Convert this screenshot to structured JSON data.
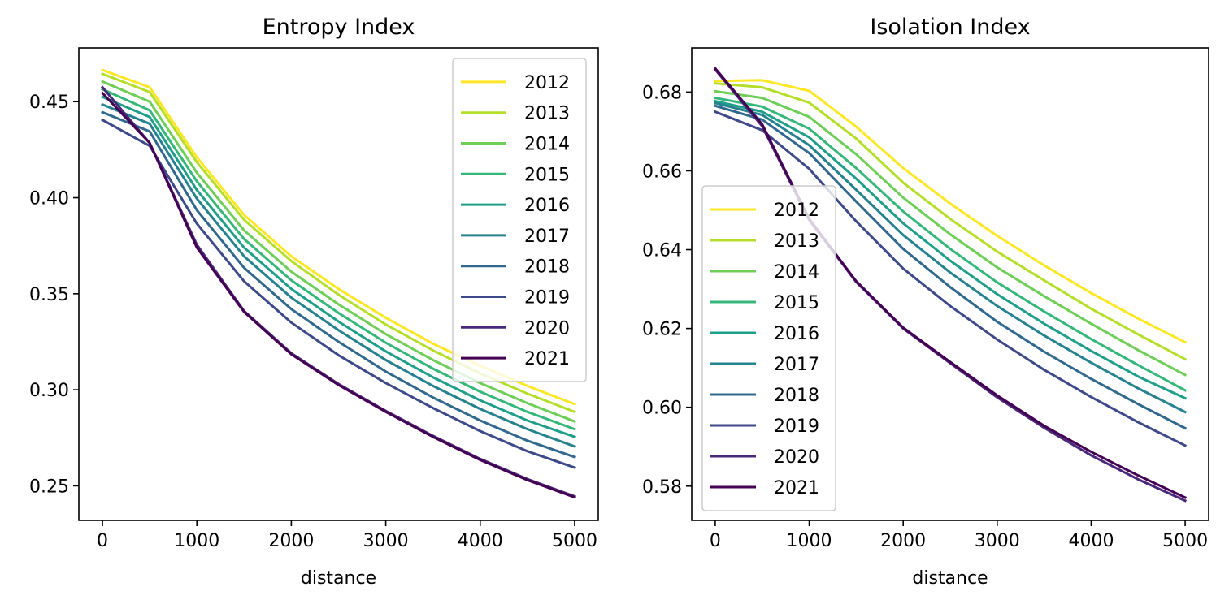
{
  "chart_data": [
    {
      "type": "line",
      "title": "Entropy Index",
      "xlabel": "distance",
      "ylabel": "",
      "xlim": [
        -250,
        5250
      ],
      "ylim": [
        0.232,
        0.478
      ],
      "xticks": [
        0,
        1000,
        2000,
        3000,
        4000,
        5000
      ],
      "xtick_labels": [
        "0",
        "1000",
        "2000",
        "3000",
        "4000",
        "5000"
      ],
      "yticks": [
        0.25,
        0.3,
        0.35,
        0.4,
        0.45
      ],
      "ytick_labels": [
        "0.25",
        "0.30",
        "0.35",
        "0.40",
        "0.45"
      ],
      "grid": false,
      "legend_position": "upper right",
      "x": [
        0,
        500,
        1000,
        1500,
        2000,
        2500,
        3000,
        3500,
        4000,
        4500,
        5000
      ],
      "series": [
        {
          "name": "2012",
          "color": "#fde725",
          "values": [
            0.4665,
            0.4575,
            0.421,
            0.391,
            0.3695,
            0.3525,
            0.3375,
            0.324,
            0.3125,
            0.302,
            0.2925
          ]
        },
        {
          "name": "2013",
          "color": "#b5de2b",
          "values": [
            0.4645,
            0.455,
            0.4185,
            0.3885,
            0.367,
            0.3495,
            0.334,
            0.3205,
            0.3085,
            0.298,
            0.2885
          ]
        },
        {
          "name": "2014",
          "color": "#6ece58",
          "values": [
            0.4605,
            0.45,
            0.413,
            0.383,
            0.3615,
            0.3445,
            0.329,
            0.3155,
            0.3035,
            0.293,
            0.2835
          ]
        },
        {
          "name": "2015",
          "color": "#35b779",
          "values": [
            0.4565,
            0.4455,
            0.4085,
            0.3785,
            0.357,
            0.34,
            0.3245,
            0.311,
            0.299,
            0.2885,
            0.2795
          ]
        },
        {
          "name": "2016",
          "color": "#1f9e89",
          "values": [
            0.4525,
            0.442,
            0.404,
            0.374,
            0.3525,
            0.3355,
            0.32,
            0.3065,
            0.2945,
            0.284,
            0.2755
          ]
        },
        {
          "name": "2017",
          "color": "#26828e",
          "values": [
            0.4485,
            0.4385,
            0.3995,
            0.3695,
            0.348,
            0.331,
            0.3155,
            0.302,
            0.29,
            0.2795,
            0.2705
          ]
        },
        {
          "name": "2018",
          "color": "#31688e",
          "values": [
            0.4445,
            0.4345,
            0.3935,
            0.3635,
            0.342,
            0.325,
            0.3095,
            0.296,
            0.284,
            0.2735,
            0.265
          ]
        },
        {
          "name": "2019",
          "color": "#3e4989",
          "values": [
            0.4405,
            0.427,
            0.3865,
            0.3565,
            0.335,
            0.318,
            0.3035,
            0.2905,
            0.2785,
            0.268,
            0.2595
          ]
        },
        {
          "name": "2020",
          "color": "#482878",
          "values": [
            0.4575,
            0.4285,
            0.3755,
            0.341,
            0.319,
            0.303,
            0.289,
            0.276,
            0.264,
            0.2535,
            0.2445
          ]
        },
        {
          "name": "2021",
          "color": "#440154",
          "values": [
            0.4545,
            0.4285,
            0.374,
            0.3405,
            0.3185,
            0.3025,
            0.2885,
            0.2755,
            0.2635,
            0.253,
            0.244
          ]
        }
      ]
    },
    {
      "type": "line",
      "title": "Isolation Index",
      "xlabel": "distance",
      "ylabel": "",
      "xlim": [
        -250,
        5250
      ],
      "ylim": [
        0.5713,
        0.6912
      ],
      "xticks": [
        0,
        1000,
        2000,
        3000,
        4000,
        5000
      ],
      "xtick_labels": [
        "0",
        "1000",
        "2000",
        "3000",
        "4000",
        "5000"
      ],
      "yticks": [
        0.58,
        0.6,
        0.62,
        0.64,
        0.66,
        0.68
      ],
      "ytick_labels": [
        "0.58",
        "0.60",
        "0.62",
        "0.64",
        "0.66",
        "0.68"
      ],
      "grid": false,
      "legend_position": "center left",
      "x": [
        0,
        500,
        1000,
        1500,
        2000,
        2500,
        3000,
        3500,
        4000,
        4500,
        5000
      ],
      "series": [
        {
          "name": "2012",
          "color": "#fde725",
          "values": [
            0.6828,
            0.683,
            0.6803,
            0.6712,
            0.6607,
            0.6517,
            0.6435,
            0.636,
            0.629,
            0.6225,
            0.6165
          ]
        },
        {
          "name": "2013",
          "color": "#b5de2b",
          "values": [
            0.6822,
            0.6812,
            0.6773,
            0.6682,
            0.657,
            0.6478,
            0.6395,
            0.6322,
            0.625,
            0.6185,
            0.6122
          ]
        },
        {
          "name": "2014",
          "color": "#6ece58",
          "values": [
            0.6802,
            0.6785,
            0.6737,
            0.6642,
            0.6532,
            0.6439,
            0.6355,
            0.6282,
            0.6212,
            0.6145,
            0.6082
          ]
        },
        {
          "name": "2015",
          "color": "#35b779",
          "values": [
            0.6785,
            0.6763,
            0.6707,
            0.6607,
            0.6497,
            0.6402,
            0.6317,
            0.6243,
            0.6173,
            0.6107,
            0.6043
          ]
        },
        {
          "name": "2016",
          "color": "#1f9e89",
          "values": [
            0.6777,
            0.675,
            0.6685,
            0.658,
            0.6467,
            0.6372,
            0.6287,
            0.6212,
            0.6143,
            0.6078,
            0.6023
          ]
        },
        {
          "name": "2017",
          "color": "#26828e",
          "values": [
            0.6772,
            0.6742,
            0.6665,
            0.6552,
            0.6437,
            0.6342,
            0.6257,
            0.6182,
            0.6113,
            0.6048,
            0.5988
          ]
        },
        {
          "name": "2018",
          "color": "#31688e",
          "values": [
            0.6765,
            0.673,
            0.6645,
            0.6522,
            0.6402,
            0.6305,
            0.6217,
            0.6141,
            0.6072,
            0.6008,
            0.5947
          ]
        },
        {
          "name": "2019",
          "color": "#3e4989",
          "values": [
            0.675,
            0.6703,
            0.6605,
            0.6472,
            0.6352,
            0.6257,
            0.6172,
            0.6095,
            0.6026,
            0.5962,
            0.5903
          ]
        },
        {
          "name": "2020",
          "color": "#482878",
          "values": [
            0.6857,
            0.6713,
            0.6475,
            0.6318,
            0.62,
            0.6112,
            0.6025,
            0.5948,
            0.5878,
            0.5817,
            0.5763
          ]
        },
        {
          "name": "2021",
          "color": "#440154",
          "values": [
            0.686,
            0.6718,
            0.6478,
            0.632,
            0.6202,
            0.6115,
            0.603,
            0.5953,
            0.5887,
            0.5827,
            0.5771
          ]
        }
      ]
    }
  ]
}
